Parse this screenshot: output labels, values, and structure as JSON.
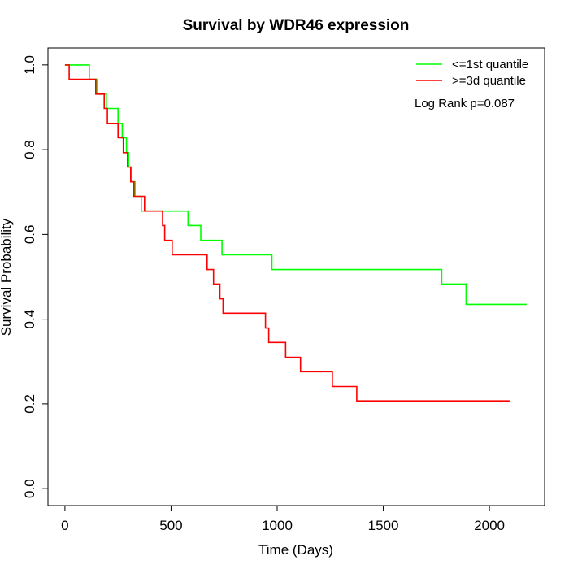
{
  "chart_data": {
    "type": "line",
    "title": "Survival by WDR46 expression",
    "xlabel": "Time (Days)",
    "ylabel": "Survival Probability",
    "xlim": [
      -80,
      2260
    ],
    "ylim": [
      -0.04,
      1.04
    ],
    "x_ticks": [
      0,
      500,
      1000,
      1500,
      2000
    ],
    "x_tick_labels": [
      "0",
      "500",
      "1000",
      "1500",
      "2000"
    ],
    "y_ticks": [
      0.0,
      0.2,
      0.4,
      0.6,
      0.8,
      1.0
    ],
    "y_tick_labels": [
      "0.0",
      "0.2",
      "0.4",
      "0.6",
      "0.8",
      "1.0"
    ],
    "grid": false,
    "legend_position": "top-right",
    "annotation": "Log Rank p=0.087",
    "series": [
      {
        "name": "<=1st quantile",
        "color": "#00FF00",
        "step": true,
        "x": [
          0,
          115,
          150,
          195,
          250,
          270,
          290,
          300,
          315,
          330,
          360,
          580,
          640,
          740,
          975,
          1775,
          1890,
          2175
        ],
        "y": [
          1.0,
          0.966,
          0.931,
          0.897,
          0.862,
          0.828,
          0.793,
          0.759,
          0.724,
          0.69,
          0.655,
          0.621,
          0.586,
          0.552,
          0.517,
          0.483,
          0.435,
          0.435
        ]
      },
      {
        "name": ">=3d quantile",
        "color": "#FF0000",
        "step": true,
        "x": [
          0,
          20,
          145,
          185,
          200,
          250,
          275,
          295,
          310,
          325,
          375,
          460,
          470,
          505,
          670,
          700,
          730,
          745,
          945,
          960,
          1040,
          1110,
          1260,
          1375,
          2095
        ],
        "y": [
          1.0,
          0.966,
          0.931,
          0.897,
          0.862,
          0.828,
          0.793,
          0.759,
          0.724,
          0.69,
          0.655,
          0.621,
          0.586,
          0.552,
          0.517,
          0.483,
          0.448,
          0.414,
          0.379,
          0.345,
          0.31,
          0.276,
          0.241,
          0.207,
          0.207
        ]
      }
    ]
  }
}
